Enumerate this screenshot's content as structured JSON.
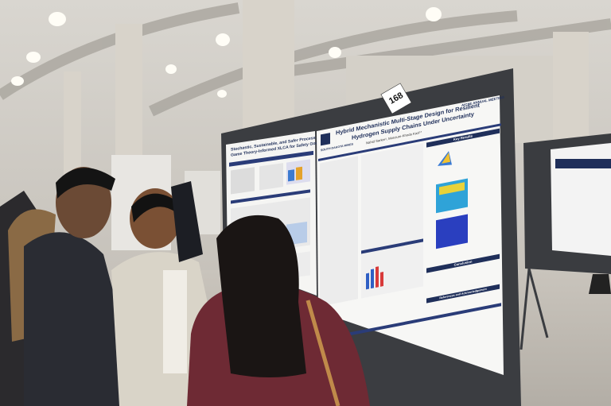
{
  "booth_number": "168",
  "main_poster": {
    "title_lines": [
      "Hybrid Mechanistic Multi-Stage Design for Resilient",
      "Hydrogen Supply Chains Under Uncertainty"
    ],
    "authors": "Nahid Sarker¹, Monzure-Khoda Kazi¹*",
    "conference_logo": "AIChE ANNUAL MEETING",
    "institution_logo": "SOUTH DAKOTA MINES",
    "sections": [
      "Key Results",
      "Conclusion",
      "References and Acknowledgement"
    ]
  },
  "left_poster": {
    "title_lines": [
      "Stochastic, Sustainable, and Safer Process Design:",
      "Game Theory-Informed XLCA for Safety Governance"
    ]
  }
}
